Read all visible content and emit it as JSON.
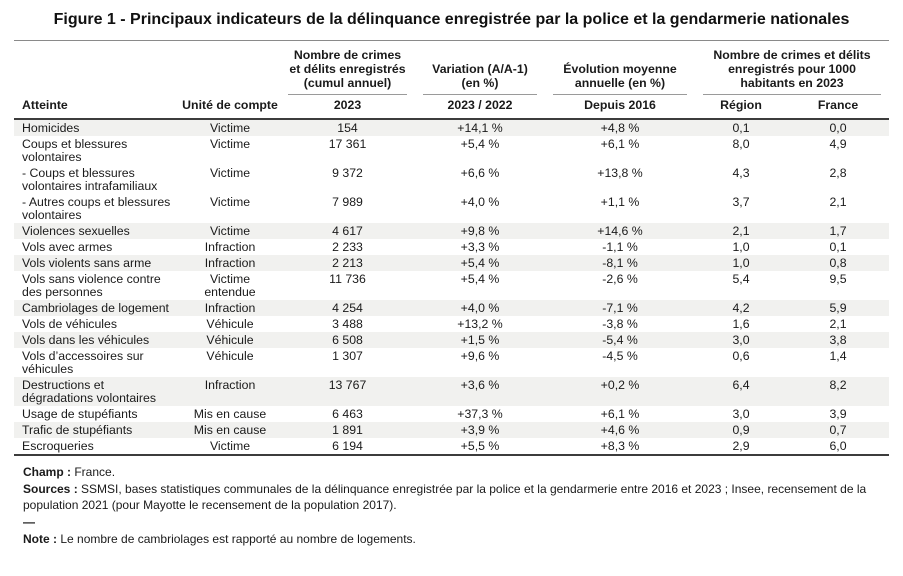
{
  "title": "Figure 1 - Principaux indicateurs de la délinquance enregistrée par la police et la gendarmerie nationales",
  "colors": {
    "row_stripe": "#f1f1ef",
    "rule_dark": "#3c3c3c",
    "rule_light": "#9a9a9a",
    "text": "#1a1a1a"
  },
  "table": {
    "headers": {
      "atteinte": "Atteinte",
      "unite": "Unité de compte",
      "group_count": "Nombre de crimes et délits enregistrés (cumul annuel)",
      "group_variation": "Variation (A/A-1) (en %)",
      "group_evolution": "Évolution moyenne annuelle (en %)",
      "group_per1000": "Nombre de crimes et délits enregistrés pour 1000 habitants en 2023",
      "sub_count": "2023",
      "sub_variation": "2023 / 2022",
      "sub_evolution": "Depuis 2016",
      "sub_region": "Région",
      "sub_france": "France"
    },
    "rows": [
      {
        "atteinte": "Homicides",
        "unite": "Victime",
        "count": "154",
        "variation": "+14,1 %",
        "evolution": "+4,8 %",
        "region": "0,1",
        "france": "0,0",
        "shaded": true
      },
      {
        "atteinte": "Coups et blessures volontaires",
        "unite": "Victime",
        "count": "17 361",
        "variation": "+5,4 %",
        "evolution": "+6,1 %",
        "region": "8,0",
        "france": "4,9",
        "shaded": false
      },
      {
        "atteinte": "- Coups et blessures volontaires intrafamiliaux",
        "unite": "Victime",
        "count": "9 372",
        "variation": "+6,6 %",
        "evolution": "+13,8 %",
        "region": "4,3",
        "france": "2,8",
        "shaded": false
      },
      {
        "atteinte": "- Autres coups et blessures volontaires",
        "unite": "Victime",
        "count": "7 989",
        "variation": "+4,0 %",
        "evolution": "+1,1 %",
        "region": "3,7",
        "france": "2,1",
        "shaded": false
      },
      {
        "atteinte": "Violences sexuelles",
        "unite": "Victime",
        "count": "4 617",
        "variation": "+9,8 %",
        "evolution": "+14,6 %",
        "region": "2,1",
        "france": "1,7",
        "shaded": true
      },
      {
        "atteinte": "Vols avec armes",
        "unite": "Infraction",
        "count": "2 233",
        "variation": "+3,3 %",
        "evolution": "-1,1 %",
        "region": "1,0",
        "france": "0,1",
        "shaded": false
      },
      {
        "atteinte": "Vols violents sans arme",
        "unite": "Infraction",
        "count": "2 213",
        "variation": "+5,4 %",
        "evolution": "-8,1 %",
        "region": "1,0",
        "france": "0,8",
        "shaded": true
      },
      {
        "atteinte": "Vols sans violence contre des personnes",
        "unite": "Victime entendue",
        "count": "11 736",
        "variation": "+5,4 %",
        "evolution": "-2,6 %",
        "region": "5,4",
        "france": "9,5",
        "shaded": false
      },
      {
        "atteinte": "Cambriolages de logement",
        "unite": "Infraction",
        "count": "4 254",
        "variation": "+4,0 %",
        "evolution": "-7,1 %",
        "region": "4,2",
        "france": "5,9",
        "shaded": true
      },
      {
        "atteinte": "Vols de véhicules",
        "unite": "Véhicule",
        "count": "3 488",
        "variation": "+13,2 %",
        "evolution": "-3,8 %",
        "region": "1,6",
        "france": "2,1",
        "shaded": false
      },
      {
        "atteinte": "Vols dans les véhicules",
        "unite": "Véhicule",
        "count": "6 508",
        "variation": "+1,5 %",
        "evolution": "-5,4 %",
        "region": "3,0",
        "france": "3,8",
        "shaded": true
      },
      {
        "atteinte": "Vols d’accessoires sur véhicules",
        "unite": "Véhicule",
        "count": "1 307",
        "variation": "+9,6 %",
        "evolution": "-4,5 %",
        "region": "0,6",
        "france": "1,4",
        "shaded": false
      },
      {
        "atteinte": "Destructions et dégradations volontaires",
        "unite": "Infraction",
        "count": "13 767",
        "variation": "+3,6 %",
        "evolution": "+0,2 %",
        "region": "6,4",
        "france": "8,2",
        "shaded": true
      },
      {
        "atteinte": "Usage de stupéfiants",
        "unite": "Mis en cause",
        "count": "6 463",
        "variation": "+37,3 %",
        "evolution": "+6,1 %",
        "region": "3,0",
        "france": "3,9",
        "shaded": false
      },
      {
        "atteinte": "Trafic de stupéfiants",
        "unite": "Mis en cause",
        "count": "1 891",
        "variation": "+3,9 %",
        "evolution": "+4,6 %",
        "region": "0,9",
        "france": "0,7",
        "shaded": true
      },
      {
        "atteinte": "Escroqueries",
        "unite": "Victime",
        "count": "6 194",
        "variation": "+5,5 %",
        "evolution": "+8,3 %",
        "region": "2,9",
        "france": "6,0",
        "shaded": false
      }
    ]
  },
  "footer": {
    "champ_label": "Champ :",
    "champ_text": "France.",
    "sources_label": "Sources :",
    "sources_text": "SSMSI, bases statistiques communales de la délinquance enregistrée par la police et la gendarmerie entre 2016 et 2023 ; Insee, recensement de la population 2021 (pour Mayotte le recensement de la population 2017).",
    "separator": "—",
    "note_label": "Note :",
    "note_text": "Le nombre de cambriolages est rapporté au nombre de logements."
  }
}
